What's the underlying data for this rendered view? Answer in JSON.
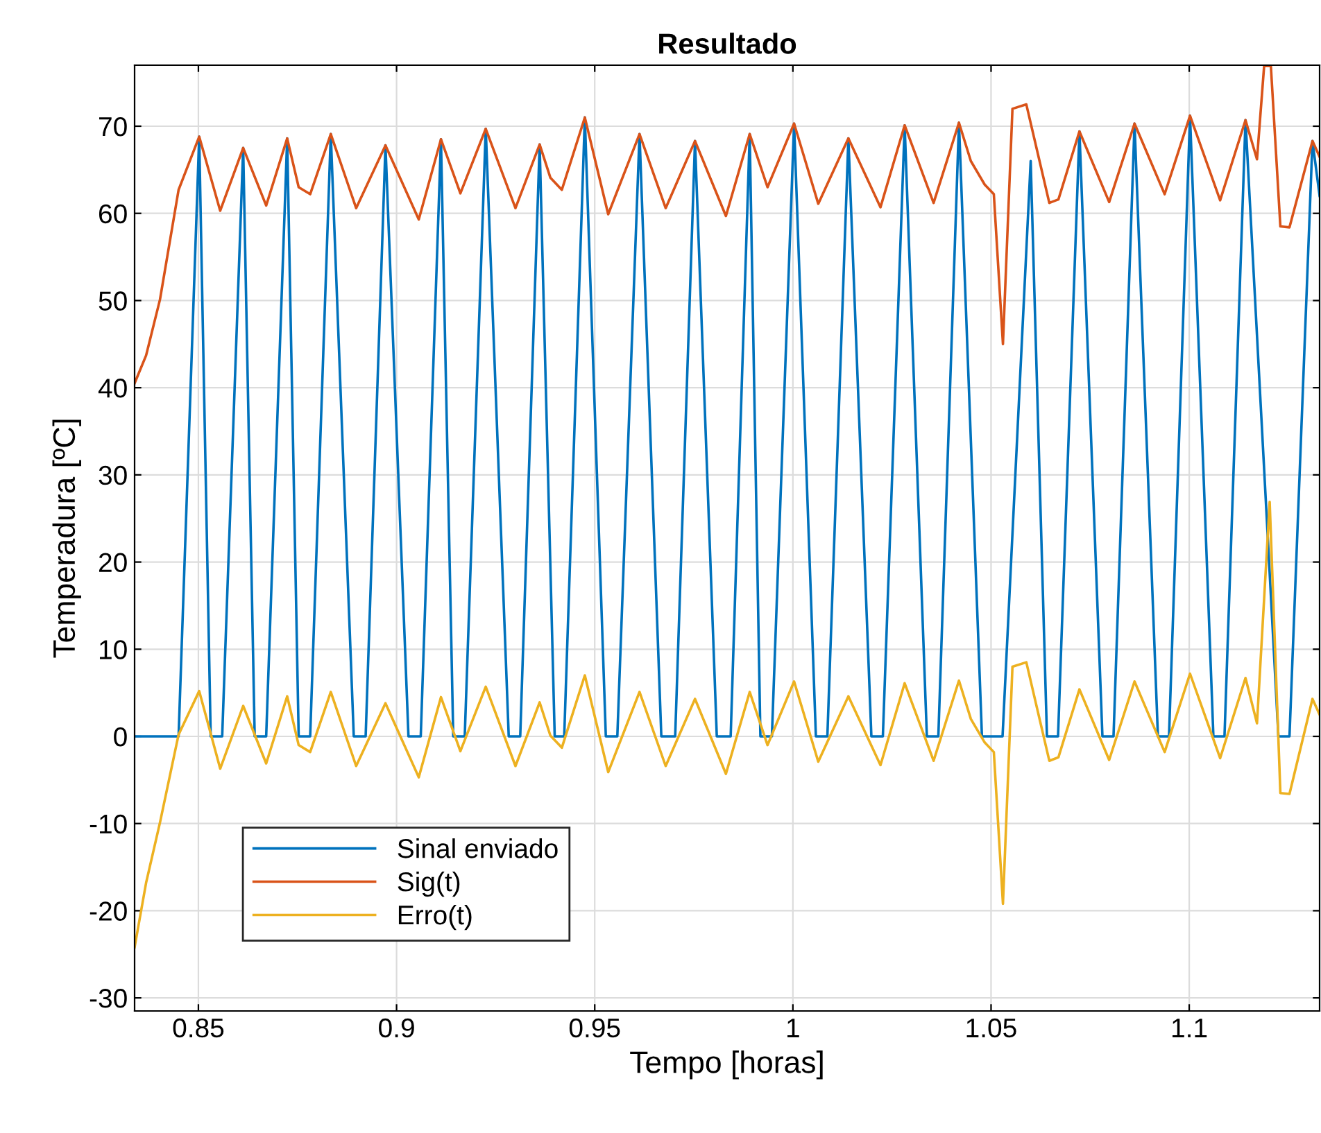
{
  "chart_data": {
    "type": "line",
    "title": "Resultado",
    "xlabel": "Tempo [horas]",
    "ylabel": "Temperadura [ºC]",
    "xlim": [
      0.8339,
      1.1329
    ],
    "ylim": [
      -31.5,
      77
    ],
    "xticks": [
      0.85,
      0.9,
      0.95,
      1,
      1.05,
      1.1
    ],
    "yticks": [
      -30,
      -20,
      -10,
      0,
      10,
      20,
      30,
      40,
      50,
      60,
      70
    ],
    "grid": true,
    "legend": "bottom left",
    "line_style": "solid",
    "marker": "none",
    "series": [
      {
        "name": "Sinal enviado",
        "color": "#0072bd",
        "x": [
          0.8339,
          0.845,
          0.8502,
          0.8531,
          0.856,
          0.8613,
          0.8642,
          0.8671,
          0.8724,
          0.8753,
          0.8782,
          0.8834,
          0.8892,
          0.8922,
          0.8972,
          0.903,
          0.9061,
          0.9112,
          0.9143,
          0.9172,
          0.9225,
          0.9283,
          0.9312,
          0.9361,
          0.9399,
          0.9423,
          0.9475,
          0.9528,
          0.9557,
          0.9613,
          0.9668,
          0.9703,
          0.9753,
          0.9808,
          0.9843,
          0.9891,
          0.9918,
          0.9947,
          1.0003,
          1.0058,
          1.0087,
          1.014,
          1.0198,
          1.0227,
          1.0282,
          1.0338,
          1.0367,
          1.0419,
          1.0477,
          1.0529,
          1.06,
          1.0641,
          1.0669,
          1.0723,
          1.0781,
          1.0809,
          1.0862,
          1.0921,
          1.0949,
          1.1002,
          1.1061,
          1.1089,
          1.1142,
          1.1225,
          1.1253,
          1.1311,
          1.1329
        ],
        "values": [
          0,
          0,
          68.8,
          0,
          0,
          67.5,
          0,
          0,
          68.6,
          0,
          0,
          69.1,
          0,
          0,
          67.8,
          0,
          0,
          68.5,
          0,
          0,
          69.7,
          0,
          0,
          67.9,
          0,
          0,
          71.0,
          0,
          0,
          69.1,
          0,
          0,
          68.3,
          0,
          0,
          69.1,
          0,
          0,
          70.3,
          0,
          0,
          68.6,
          0,
          0,
          70.1,
          0,
          0,
          70.4,
          0,
          0,
          66.0,
          0,
          0,
          69.4,
          0,
          0,
          70.3,
          0,
          0,
          71.2,
          0,
          0,
          70.7,
          0,
          0,
          68.3,
          62
        ]
      },
      {
        "name": "Sig(t)",
        "color": "#d95319",
        "x": [
          0.8339,
          0.8368,
          0.8403,
          0.845,
          0.8502,
          0.8555,
          0.8613,
          0.8671,
          0.8724,
          0.8753,
          0.8782,
          0.8834,
          0.8898,
          0.8972,
          0.9056,
          0.9112,
          0.9161,
          0.9225,
          0.93,
          0.9361,
          0.9388,
          0.9417,
          0.9475,
          0.9534,
          0.9613,
          0.9679,
          0.9753,
          0.9831,
          0.9891,
          0.9936,
          1.0003,
          1.0064,
          1.014,
          1.0221,
          1.0282,
          1.0355,
          1.0419,
          1.0449,
          1.0484,
          1.0507,
          1.053,
          1.0554,
          1.0589,
          1.0647,
          1.067,
          1.0723,
          1.0798,
          1.0862,
          1.0938,
          1.1002,
          1.1078,
          1.1142,
          1.1171,
          1.1189,
          1.1206,
          1.123,
          1.1253,
          1.1311,
          1.1329
        ],
        "values": [
          40.5,
          43.7,
          50.1,
          62.7,
          68.8,
          60.3,
          67.5,
          60.9,
          68.6,
          63.0,
          62.2,
          69.1,
          60.6,
          67.8,
          59.3,
          68.5,
          62.3,
          69.7,
          60.6,
          67.9,
          64.1,
          62.7,
          71.0,
          59.9,
          69.1,
          60.6,
          68.3,
          59.7,
          69.1,
          63.0,
          70.3,
          61.1,
          68.6,
          60.7,
          70.1,
          61.2,
          70.4,
          66.0,
          63.3,
          62.2,
          45.0,
          72.0,
          72.5,
          61.2,
          61.6,
          69.4,
          61.3,
          70.3,
          62.2,
          71.2,
          61.5,
          70.7,
          66.2,
          76.9,
          76.9,
          58.5,
          58.4,
          68.3,
          66.5
        ]
      },
      {
        "name": "Erro(t)",
        "color": "#edb120",
        "x": [
          0.8339,
          0.8368,
          0.8403,
          0.845,
          0.8502,
          0.8555,
          0.8613,
          0.8671,
          0.8724,
          0.8753,
          0.8782,
          0.8834,
          0.8898,
          0.8972,
          0.9056,
          0.9112,
          0.9161,
          0.9225,
          0.93,
          0.9361,
          0.9388,
          0.9417,
          0.9475,
          0.9534,
          0.9613,
          0.9679,
          0.9753,
          0.9831,
          0.9891,
          0.9936,
          1.0003,
          1.0064,
          1.014,
          1.0221,
          1.0282,
          1.0355,
          1.0419,
          1.0449,
          1.0484,
          1.0507,
          1.053,
          1.0554,
          1.0589,
          1.0647,
          1.067,
          1.0723,
          1.0798,
          1.0862,
          1.0938,
          1.1002,
          1.1078,
          1.1142,
          1.1171,
          1.1203,
          1.123,
          1.1253,
          1.1311,
          1.1329
        ],
        "values": [
          -24.2,
          -16.8,
          -9.9,
          0.2,
          5.2,
          -3.7,
          3.5,
          -3.1,
          4.6,
          -1.0,
          -1.8,
          5.1,
          -3.4,
          3.8,
          -4.7,
          4.5,
          -1.7,
          5.7,
          -3.4,
          3.9,
          0.1,
          -1.3,
          7.0,
          -4.1,
          5.1,
          -3.4,
          4.3,
          -4.3,
          5.1,
          -1.0,
          6.3,
          -2.9,
          4.6,
          -3.3,
          6.1,
          -2.8,
          6.4,
          2.0,
          -0.7,
          -1.8,
          -19.2,
          8.0,
          8.5,
          -2.8,
          -2.4,
          5.4,
          -2.7,
          6.3,
          -1.8,
          7.2,
          -2.5,
          6.7,
          1.5,
          26.9,
          -6.5,
          -6.6,
          4.3,
          2.5
        ]
      }
    ]
  }
}
